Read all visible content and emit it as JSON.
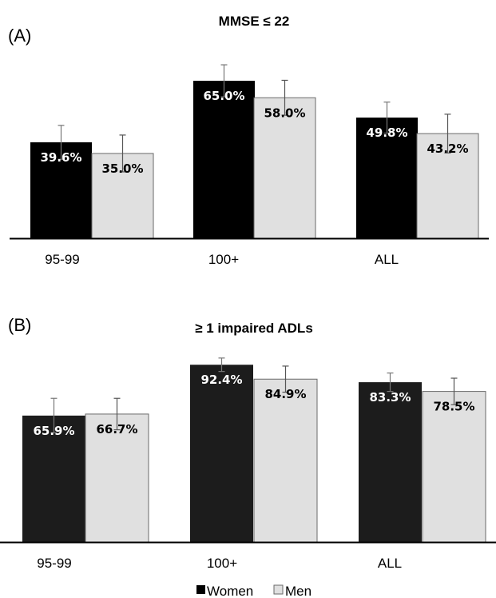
{
  "legend": {
    "women_label": "Women",
    "men_label": "Men"
  },
  "colors": {
    "women": "#000000",
    "men": "#e0e0e0",
    "men_stroke": "#6a6a6a",
    "error_bar": "#555555"
  },
  "chart_data": [
    {
      "type": "bar",
      "panel_letter": "(A)",
      "title": "MMSE ≤ 22",
      "categories": [
        "95-99",
        "100+",
        "ALL"
      ],
      "ylim": [
        0,
        100
      ],
      "series": [
        {
          "name": "Women",
          "values": [
            39.6,
            65.0,
            49.8
          ],
          "labels": [
            "39.6%",
            "65.0%",
            "49.8%"
          ],
          "error_upper": [
            46.6,
            71.6,
            56.2
          ],
          "error_lower": [
            32.6,
            58.4,
            43.4
          ]
        },
        {
          "name": "Men",
          "values": [
            35.0,
            58.0,
            43.2
          ],
          "labels": [
            "35.0%",
            "58.0%",
            "43.2%"
          ],
          "error_upper": [
            42.6,
            65.2,
            51.2
          ],
          "error_lower": [
            27.4,
            50.8,
            35.2
          ]
        }
      ]
    },
    {
      "type": "bar",
      "panel_letter": "(B)",
      "title": "≥ 1 impaired ADLs",
      "categories": [
        "95-99",
        "100+",
        "ALL"
      ],
      "ylim": [
        0,
        100
      ],
      "series": [
        {
          "name": "Women",
          "values": [
            65.9,
            92.4,
            83.3
          ],
          "labels": [
            "65.9%",
            "92.4%",
            "83.3%"
          ],
          "error_upper": [
            74.9,
            95.9,
            88.1
          ],
          "error_lower": [
            56.9,
            88.9,
            78.5
          ]
        },
        {
          "name": "Men",
          "values": [
            66.7,
            84.9,
            78.5
          ],
          "labels": [
            "66.7%",
            "84.9%",
            "78.5%"
          ],
          "error_upper": [
            74.9,
            91.7,
            85.4
          ],
          "error_lower": [
            58.5,
            78.1,
            71.6
          ]
        }
      ]
    }
  ]
}
